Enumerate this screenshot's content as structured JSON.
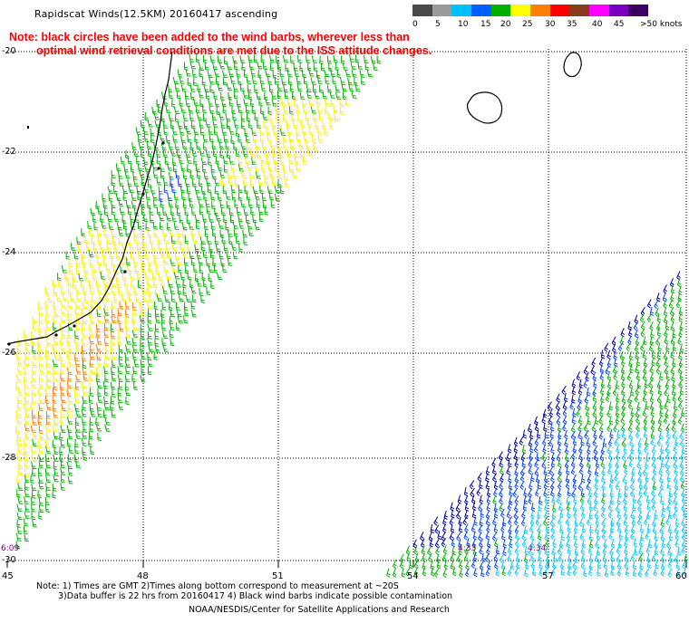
{
  "title": "Rapidscat Winds(12.5KM) 20160417 ascending",
  "note": {
    "line1": "Note: black circles have been added to the wind barbs, wherever less than",
    "line2": "optimal wind retrieval conditions are met due to the ISS attitude changes."
  },
  "legend": {
    "labels": [
      "0",
      "5",
      "10",
      "15",
      "20",
      "25",
      "30",
      "35",
      "40",
      "45",
      ">50 knots"
    ],
    "colors": [
      "#4a4a4a",
      "#9a9a9a",
      "#00c0ff",
      "#0060ff",
      "#00b000",
      "#ffff00",
      "#ff8000",
      "#ff0000",
      "#8b3a1a",
      "#ff00ff",
      "#7a00c0",
      "#3a0060"
    ]
  },
  "axes": {
    "lat_labels": [
      "-20",
      "-22",
      "-24",
      "-26",
      "-28",
      "-30"
    ],
    "lon_labels": [
      "45",
      "48",
      "51",
      "54",
      "57",
      "60"
    ]
  },
  "time_labels": [
    "6:09",
    "4:33",
    "4:34"
  ],
  "footer": {
    "line1": "Note: 1) Times are GMT 2)Times along bottom correspond to measurement at ~20S",
    "line2": "3)Data buffer is 22 hrs from 20160417 4) Black wind barbs indicate possible contamination",
    "line3": "NOAA/NESDIS/Center for Satellite Applications and Research"
  },
  "colors": {
    "green": "#00b000",
    "yellow": "#ffee00",
    "orange": "#ff7a00",
    "blue": "#0040ff",
    "darkblue": "#0000a0",
    "cyan": "#00c8ff",
    "grid": "#000000",
    "note": "#ff0000",
    "time_label": "#800080"
  }
}
